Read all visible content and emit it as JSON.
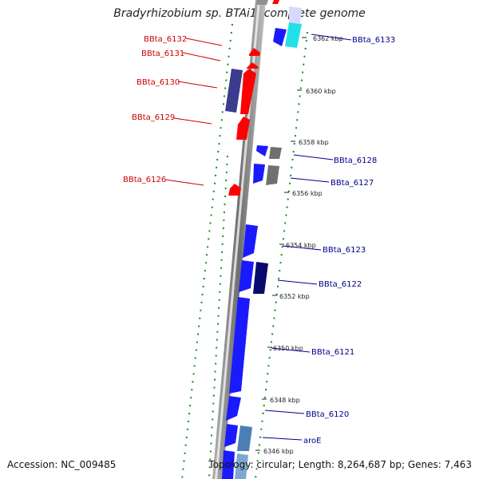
{
  "header": {
    "title": "Bradyrhizobium sp. BTAi1, complete genome"
  },
  "footer": {
    "accession": "Accession: NC_009485",
    "summary": "Topology: circular; Length: 8,264,687 bp; Genes: 7,463"
  },
  "map": {
    "ticks": [
      {
        "label": "6362 kbp"
      },
      {
        "label": "6360 kbp"
      },
      {
        "label": "6358 kbp"
      },
      {
        "label": "6356 kbp"
      },
      {
        "label": "6354 kbp"
      },
      {
        "label": "6352 kbp"
      },
      {
        "label": "6350 kbp"
      },
      {
        "label": "6348 kbp"
      },
      {
        "label": "6346 kbp"
      }
    ],
    "gene_labels_forward": [
      {
        "label": "BBta_6132"
      },
      {
        "label": "BBta_6131"
      },
      {
        "label": "BBta_6130"
      },
      {
        "label": "BBta_6129"
      },
      {
        "label": "BBta_6126"
      }
    ],
    "gene_labels_reverse": [
      {
        "label": "BBta_6133"
      },
      {
        "label": "BBta_6128"
      },
      {
        "label": "BBta_6127"
      },
      {
        "label": "BBta_6123"
      },
      {
        "label": "BBta_6122"
      },
      {
        "label": "BBta_6121"
      },
      {
        "label": "BBta_6120"
      },
      {
        "label": "aroE"
      }
    ],
    "colors": {
      "forward_gene": "#ff0000",
      "reverse_gene": "#1a1aff",
      "dark_gene": "#3b3b8f",
      "gray_gene": "#707070",
      "cyan_gene": "#22e0e8",
      "steel_gene": "#4a7fb5",
      "navy_gene": "#0a0a6e",
      "backbone": "#8a8a8a",
      "tick_green": "#1a8a1a"
    }
  }
}
